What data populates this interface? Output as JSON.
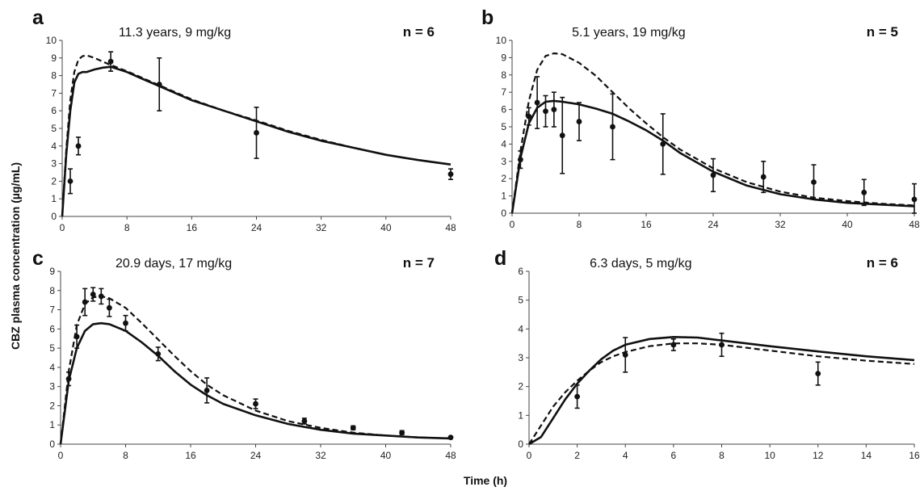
{
  "figure": {
    "ylabel": "CBZ plasma concentration (µg/mL)",
    "xlabel": "Time (h)"
  },
  "chart_data": [
    {
      "type": "line",
      "panel": "a",
      "title": "11.3 years, 9 mg/kg",
      "n_label": "n = 6",
      "xlim": [
        0,
        48
      ],
      "ylim": [
        0,
        10
      ],
      "xticks": [
        0,
        8,
        16,
        24,
        32,
        40,
        48
      ],
      "yticks": [
        0,
        1,
        2,
        3,
        4,
        5,
        6,
        7,
        8,
        9,
        10
      ],
      "grid": false,
      "series": [
        {
          "style": "solid",
          "x": [
            0,
            0.5,
            1,
            1.5,
            2,
            2.5,
            3,
            4,
            5,
            6,
            8,
            10,
            12,
            16,
            20,
            24,
            28,
            32,
            36,
            40,
            44,
            48
          ],
          "y": [
            0,
            3.5,
            6.0,
            7.6,
            8.1,
            8.2,
            8.2,
            8.35,
            8.45,
            8.5,
            8.2,
            7.8,
            7.4,
            6.6,
            6.0,
            5.4,
            4.8,
            4.3,
            3.9,
            3.5,
            3.2,
            2.95
          ]
        },
        {
          "style": "dashed",
          "x": [
            0,
            0.5,
            1,
            1.5,
            2,
            2.5,
            3,
            4,
            5,
            6,
            8,
            10,
            12,
            16,
            20,
            24,
            28,
            32,
            36,
            40,
            44,
            48
          ],
          "y": [
            0,
            3.8,
            6.6,
            8.2,
            8.9,
            9.1,
            9.15,
            9.0,
            8.8,
            8.6,
            8.25,
            7.85,
            7.45,
            6.65,
            6.0,
            5.45,
            4.85,
            4.35,
            3.9,
            3.5,
            3.2,
            2.95
          ]
        },
        {
          "style": "observed",
          "x": [
            1,
            2,
            6,
            12,
            24,
            48
          ],
          "y": [
            2.0,
            4.0,
            8.8,
            7.5,
            4.75,
            2.4
          ],
          "err": [
            0.7,
            0.5,
            0.55,
            1.5,
            1.45,
            0.3
          ]
        }
      ]
    },
    {
      "type": "line",
      "panel": "b",
      "title": "5.1 years, 19 mg/kg",
      "n_label": "n = 5",
      "xlim": [
        0,
        48
      ],
      "ylim": [
        0,
        10
      ],
      "xticks": [
        0,
        8,
        16,
        24,
        32,
        40,
        48
      ],
      "yticks": [
        0,
        1,
        2,
        3,
        4,
        5,
        6,
        7,
        8,
        9,
        10
      ],
      "grid": false,
      "series": [
        {
          "style": "solid",
          "x": [
            0,
            1,
            2,
            3,
            4,
            5,
            6,
            8,
            10,
            12,
            14,
            16,
            18,
            20,
            24,
            28,
            32,
            36,
            40,
            44,
            48
          ],
          "y": [
            0,
            3.2,
            5.2,
            6.1,
            6.45,
            6.5,
            6.45,
            6.3,
            6.05,
            5.75,
            5.3,
            4.8,
            4.2,
            3.5,
            2.4,
            1.6,
            1.1,
            0.8,
            0.6,
            0.5,
            0.4
          ]
        },
        {
          "style": "dashed",
          "x": [
            0,
            1,
            2,
            3,
            4,
            5,
            6,
            8,
            10,
            12,
            14,
            16,
            18,
            20,
            24,
            28,
            32,
            36,
            40,
            44,
            48
          ],
          "y": [
            0,
            3.6,
            6.5,
            8.3,
            9.1,
            9.25,
            9.2,
            8.7,
            7.95,
            7.0,
            6.05,
            5.2,
            4.4,
            3.7,
            2.6,
            1.8,
            1.25,
            0.9,
            0.7,
            0.55,
            0.45
          ]
        },
        {
          "style": "observed",
          "x": [
            1,
            2,
            3,
            4,
            5,
            6,
            8,
            12,
            18,
            24,
            30,
            36,
            42,
            48
          ],
          "y": [
            3.1,
            5.6,
            6.4,
            5.9,
            6.0,
            4.5,
            5.3,
            5.0,
            4.0,
            2.2,
            2.1,
            1.8,
            1.2,
            0.8
          ],
          "err": [
            0.5,
            0.5,
            1.5,
            0.9,
            1.0,
            2.2,
            1.1,
            1.9,
            1.75,
            0.95,
            0.9,
            1.0,
            0.75,
            0.9
          ]
        }
      ]
    },
    {
      "type": "line",
      "panel": "c",
      "title": "20.9 days, 17  mg/kg",
      "n_label": "n = 7",
      "xlim": [
        0,
        48
      ],
      "ylim": [
        0,
        9
      ],
      "xticks": [
        0,
        8,
        16,
        24,
        32,
        40,
        48
      ],
      "yticks": [
        0,
        1,
        2,
        3,
        4,
        5,
        6,
        7,
        8,
        9
      ],
      "grid": false,
      "series": [
        {
          "style": "solid",
          "x": [
            0,
            1,
            2,
            3,
            4,
            5,
            6,
            8,
            10,
            12,
            14,
            16,
            18,
            20,
            24,
            28,
            32,
            36,
            40,
            44,
            48
          ],
          "y": [
            0,
            3.3,
            5.0,
            5.9,
            6.25,
            6.3,
            6.25,
            5.9,
            5.3,
            4.6,
            3.8,
            3.1,
            2.55,
            2.1,
            1.5,
            1.05,
            0.75,
            0.55,
            0.45,
            0.35,
            0.3
          ]
        },
        {
          "style": "dashed",
          "x": [
            0,
            1,
            2,
            3,
            4,
            5,
            6,
            8,
            10,
            12,
            14,
            16,
            18,
            20,
            24,
            28,
            32,
            36,
            40,
            44,
            48
          ],
          "y": [
            0,
            3.8,
            6.2,
            7.3,
            7.65,
            7.7,
            7.6,
            7.1,
            6.3,
            5.45,
            4.6,
            3.8,
            3.1,
            2.55,
            1.75,
            1.2,
            0.85,
            0.6,
            0.45,
            0.35,
            0.3
          ]
        },
        {
          "style": "observed",
          "x": [
            1,
            2,
            3,
            4,
            5,
            6,
            8,
            12,
            18,
            24,
            30,
            36,
            42,
            48
          ],
          "y": [
            3.4,
            5.6,
            7.4,
            7.8,
            7.7,
            7.1,
            6.3,
            4.7,
            2.8,
            2.1,
            1.2,
            0.85,
            0.6,
            0.35
          ],
          "err": [
            0.35,
            0.6,
            0.7,
            0.35,
            0.4,
            0.45,
            0.4,
            0.35,
            0.65,
            0.25,
            0.15,
            0.1,
            0.1,
            0.05
          ]
        }
      ]
    },
    {
      "type": "line",
      "panel": "d",
      "title": "6.3 days, 5 mg/kg",
      "n_label": "n = 6",
      "xlim": [
        0,
        16
      ],
      "ylim": [
        0,
        6
      ],
      "xticks": [
        0,
        2,
        4,
        6,
        8,
        10,
        12,
        14,
        16
      ],
      "yticks": [
        0,
        1,
        2,
        3,
        4,
        5,
        6
      ],
      "grid": false,
      "series": [
        {
          "style": "solid",
          "x": [
            0,
            0.5,
            1,
            1.5,
            2,
            2.5,
            3,
            3.5,
            4,
            5,
            6,
            7,
            8,
            10,
            12,
            14,
            16
          ],
          "y": [
            0,
            0.25,
            0.9,
            1.55,
            2.1,
            2.55,
            2.95,
            3.25,
            3.45,
            3.65,
            3.72,
            3.7,
            3.6,
            3.4,
            3.22,
            3.05,
            2.92
          ]
        },
        {
          "style": "dashed",
          "x": [
            0,
            0.5,
            1,
            1.5,
            2,
            2.5,
            3,
            3.5,
            4,
            5,
            6,
            7,
            8,
            10,
            12,
            14,
            16
          ],
          "y": [
            0,
            0.65,
            1.3,
            1.8,
            2.2,
            2.55,
            2.85,
            3.05,
            3.2,
            3.4,
            3.5,
            3.5,
            3.45,
            3.25,
            3.05,
            2.9,
            2.78
          ]
        },
        {
          "style": "observed",
          "x": [
            2,
            4,
            6,
            8,
            12
          ],
          "y": [
            1.65,
            3.1,
            3.45,
            3.45,
            2.45
          ],
          "err": [
            0.4,
            0.6,
            0.2,
            0.4,
            0.4
          ]
        }
      ]
    }
  ]
}
